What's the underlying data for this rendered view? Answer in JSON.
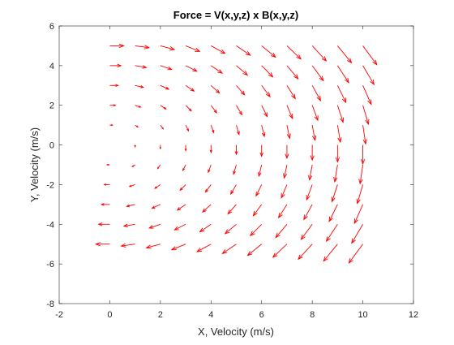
{
  "chart_data": {
    "type": "quiver",
    "title": "Force = V(x,y,z) x B(x,y,z)",
    "xlabel": "X, Velocity (m/s)",
    "ylabel": "Y, Velocity (m/s)",
    "xlim": [
      -2,
      12
    ],
    "ylim": [
      -8,
      6
    ],
    "xticks": [
      "-2",
      "0",
      "2",
      "4",
      "6",
      "8",
      "10",
      "12"
    ],
    "yticks": [
      "-8",
      "-6",
      "-4",
      "-2",
      "0",
      "2",
      "4",
      "6"
    ],
    "x_grid": [
      0,
      1,
      2,
      3,
      4,
      5,
      6,
      7,
      8,
      9,
      10
    ],
    "y_grid": [
      -5,
      -4,
      -3,
      -2,
      -1,
      0,
      1,
      2,
      3,
      4,
      5
    ],
    "vector_field": "u = y/5 * 0.55, v = -x/10 * 0.95 (arrows scaled in data units)",
    "arrow_color": "#ff0000",
    "grid": false,
    "box": true
  }
}
